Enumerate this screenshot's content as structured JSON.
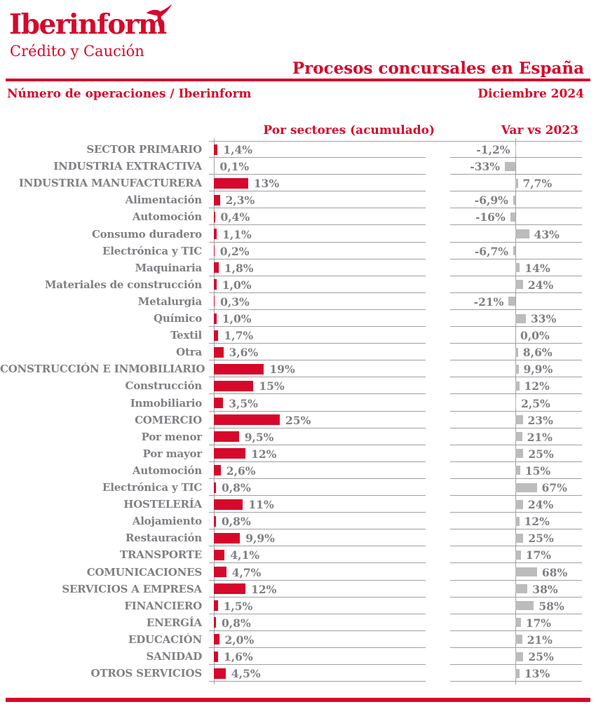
{
  "brand": {
    "logo_text": "Iberinform",
    "logo_subtitle": "Crédito y Caución",
    "logo_mark_icon": "swift-bird-icon"
  },
  "header": {
    "title": "Procesos concursales en España",
    "subtitle_left": "Número de operaciones / Iberinform",
    "subtitle_right": "Diciembre 2024"
  },
  "columns": {
    "sectors_header": "Por sectores (acumulado)",
    "var_header": "Var vs 2023"
  },
  "colors": {
    "accent_red": "#d6082b",
    "label_gray": "#7f8084",
    "bar_gray": "#bcbcbc",
    "grid_gray": "#a0a0a0"
  },
  "chart_data": {
    "type": "bar",
    "orientation": "horizontal",
    "title": "Procesos concursales en España",
    "period": "Diciembre 2024",
    "grid": "row-separators",
    "legend_position": "none",
    "series": [
      {
        "name": "Por sectores (acumulado)",
        "unit": "%",
        "color": "#d6082b",
        "axis_min": 0,
        "axis_max": 80
      },
      {
        "name": "Var vs 2023",
        "unit": "%",
        "color": "#bcbcbc",
        "axis_min": -200,
        "axis_max": 200
      }
    ],
    "rows": [
      {
        "label": "SECTOR PRIMARIO",
        "group": true,
        "pct": 1.4,
        "pct_label": "1,4%",
        "var": -1.2,
        "var_label": "-1,2%"
      },
      {
        "label": "INDUSTRIA EXTRACTIVA",
        "group": true,
        "pct": 0.1,
        "pct_label": "0,1%",
        "var": -33,
        "var_label": "-33%"
      },
      {
        "label": "INDUSTRIA MANUFACTURERA",
        "group": true,
        "pct": 13,
        "pct_label": "13%",
        "var": 7.7,
        "var_label": "7,7%"
      },
      {
        "label": "Alimentación",
        "group": false,
        "pct": 2.3,
        "pct_label": "2,3%",
        "var": -6.9,
        "var_label": "-6,9%"
      },
      {
        "label": "Automoción",
        "group": false,
        "pct": 0.4,
        "pct_label": "0,4%",
        "var": -16,
        "var_label": "-16%"
      },
      {
        "label": "Consumo duradero",
        "group": false,
        "pct": 1.1,
        "pct_label": "1,1%",
        "var": 43,
        "var_label": "43%"
      },
      {
        "label": "Electrónica y TIC",
        "group": false,
        "pct": 0.2,
        "pct_label": "0,2%",
        "var": -6.7,
        "var_label": "-6,7%"
      },
      {
        "label": "Maquinaria",
        "group": false,
        "pct": 1.8,
        "pct_label": "1,8%",
        "var": 14,
        "var_label": "14%"
      },
      {
        "label": "Materiales de construcción",
        "group": false,
        "pct": 1.0,
        "pct_label": "1,0%",
        "var": 24,
        "var_label": "24%"
      },
      {
        "label": "Metalurgia",
        "group": false,
        "pct": 0.3,
        "pct_label": "0,3%",
        "var": -21,
        "var_label": "-21%"
      },
      {
        "label": "Químico",
        "group": false,
        "pct": 1.0,
        "pct_label": "1,0%",
        "var": 33,
        "var_label": "33%"
      },
      {
        "label": "Textil",
        "group": false,
        "pct": 1.7,
        "pct_label": "1,7%",
        "var": 0.0,
        "var_label": "0,0%"
      },
      {
        "label": "Otra",
        "group": false,
        "pct": 3.6,
        "pct_label": "3,6%",
        "var": 8.6,
        "var_label": "8,6%"
      },
      {
        "label": "CONSTRUCCIÓN E INMOBILIARIO",
        "group": true,
        "pct": 19,
        "pct_label": "19%",
        "var": 9.9,
        "var_label": "9,9%"
      },
      {
        "label": "Construcción",
        "group": false,
        "pct": 15,
        "pct_label": "15%",
        "var": 12,
        "var_label": "12%"
      },
      {
        "label": "Inmobiliario",
        "group": false,
        "pct": 3.5,
        "pct_label": "3,5%",
        "var": 2.5,
        "var_label": "2,5%"
      },
      {
        "label": "COMERCIO",
        "group": true,
        "pct": 25,
        "pct_label": "25%",
        "var": 23,
        "var_label": "23%"
      },
      {
        "label": "Por menor",
        "group": false,
        "pct": 9.5,
        "pct_label": "9,5%",
        "var": 21,
        "var_label": "21%"
      },
      {
        "label": "Por mayor",
        "group": false,
        "pct": 12,
        "pct_label": "12%",
        "var": 25,
        "var_label": "25%"
      },
      {
        "label": "Automoción",
        "group": false,
        "pct": 2.6,
        "pct_label": "2,6%",
        "var": 15,
        "var_label": "15%"
      },
      {
        "label": "Electrónica y TIC",
        "group": false,
        "pct": 0.8,
        "pct_label": "0,8%",
        "var": 67,
        "var_label": "67%"
      },
      {
        "label": "HOSTELERÍA",
        "group": true,
        "pct": 11,
        "pct_label": "11%",
        "var": 24,
        "var_label": "24%"
      },
      {
        "label": "Alojamiento",
        "group": false,
        "pct": 0.8,
        "pct_label": "0,8%",
        "var": 12,
        "var_label": "12%"
      },
      {
        "label": "Restauración",
        "group": false,
        "pct": 9.9,
        "pct_label": "9,9%",
        "var": 25,
        "var_label": "25%"
      },
      {
        "label": "TRANSPORTE",
        "group": true,
        "pct": 4.1,
        "pct_label": "4,1%",
        "var": 17,
        "var_label": "17%"
      },
      {
        "label": "COMUNICACIONES",
        "group": true,
        "pct": 4.7,
        "pct_label": "4,7%",
        "var": 68,
        "var_label": "68%"
      },
      {
        "label": "SERVICIOS A EMPRESA",
        "group": true,
        "pct": 12,
        "pct_label": "12%",
        "var": 38,
        "var_label": "38%"
      },
      {
        "label": "FINANCIERO",
        "group": true,
        "pct": 1.5,
        "pct_label": "1,5%",
        "var": 58,
        "var_label": "58%"
      },
      {
        "label": "ENERGÍA",
        "group": true,
        "pct": 0.8,
        "pct_label": "0,8%",
        "var": 17,
        "var_label": "17%"
      },
      {
        "label": "EDUCACIÓN",
        "group": true,
        "pct": 2.0,
        "pct_label": "2,0%",
        "var": 21,
        "var_label": "21%"
      },
      {
        "label": "SANIDAD",
        "group": true,
        "pct": 1.6,
        "pct_label": "1,6%",
        "var": 25,
        "var_label": "25%"
      },
      {
        "label": "OTROS SERVICIOS",
        "group": true,
        "pct": 4.5,
        "pct_label": "4,5%",
        "var": 13,
        "var_label": "13%"
      }
    ]
  }
}
